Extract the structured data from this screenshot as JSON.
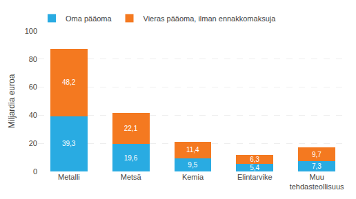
{
  "chart_data": {
    "type": "bar",
    "stacked": true,
    "ylabel": "Miljardia euroa",
    "categories": [
      "Metalli",
      "Metsä",
      "Kemia",
      "Elintarvike",
      "Muu\ntehdasteollisuus"
    ],
    "series": [
      {
        "name": "Oma pääoma",
        "color": "#29abe2",
        "values": [
          39.3,
          19.6,
          9.5,
          5.4,
          7.3
        ],
        "value_labels": [
          "39,3",
          "19,6",
          "9,5",
          "5,4",
          "7,3"
        ]
      },
      {
        "name": "Vieras pääoma, ilman ennakkomaksuja",
        "color": "#f47920",
        "values": [
          48.2,
          22.1,
          11.4,
          6.3,
          9.7
        ],
        "value_labels": [
          "48,2",
          "22,1",
          "11,4",
          "6,3",
          "9,7"
        ]
      }
    ],
    "ylim": [
      0,
      100
    ],
    "yticks": [
      0,
      20,
      40,
      60,
      80,
      100
    ],
    "grid": true,
    "legend": "upper left",
    "data_labels": true
  }
}
